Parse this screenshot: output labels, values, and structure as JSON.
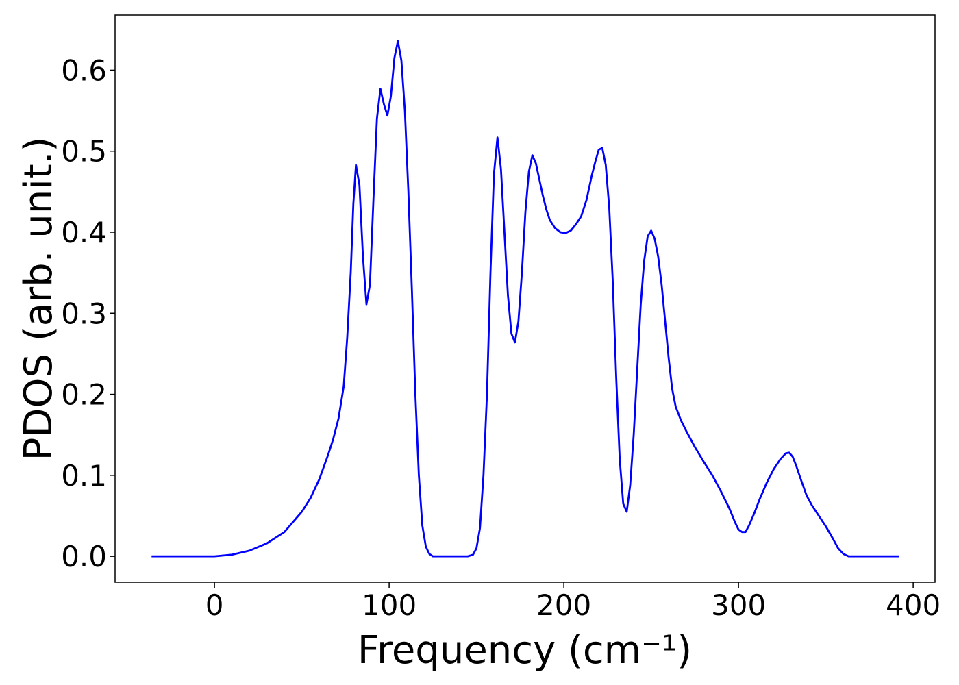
{
  "chart_data": {
    "type": "line",
    "x_label": "Frequency (cm⁻¹)",
    "y_label": "PDOS (arb. unit.)",
    "xlim": [
      -56.9,
      412.5
    ],
    "ylim": [
      -0.032,
      0.668
    ],
    "xticks": [
      0,
      100,
      200,
      300,
      400
    ],
    "yticks": [
      {
        "value": 0,
        "label": "0.0"
      },
      0.1,
      0.2,
      0.3,
      0.4,
      0.5,
      0.6
    ],
    "x": [
      -36,
      0,
      10,
      20,
      30,
      40,
      50,
      55,
      60,
      65,
      68,
      71,
      74,
      76,
      78,
      79.5,
      81,
      83,
      85,
      87,
      89,
      91,
      93,
      95,
      97,
      99,
      101,
      103,
      105,
      107,
      109,
      111,
      113,
      115,
      117,
      119,
      121,
      123,
      125,
      145,
      148,
      150,
      152,
      154,
      156,
      158,
      160,
      162,
      164,
      166,
      168,
      170,
      172,
      174,
      176,
      178,
      180,
      182,
      184,
      186,
      188,
      190,
      192,
      195,
      198,
      201,
      204,
      207,
      210,
      213,
      216,
      218,
      220,
      222,
      224,
      226,
      228,
      230,
      232,
      234,
      236,
      238,
      240,
      242,
      244,
      246,
      248,
      250,
      252,
      254,
      256,
      258,
      260,
      262,
      264,
      267,
      270,
      275,
      280,
      285,
      290,
      295,
      298,
      300,
      302,
      304,
      306,
      309,
      312,
      316,
      320,
      324,
      327,
      329,
      331,
      333,
      336,
      339,
      342,
      346,
      350,
      354,
      357,
      360,
      363,
      392
    ],
    "series": [
      {
        "color": "#0000ff",
        "values": [
          0,
          0,
          0.002,
          0.007,
          0.016,
          0.03,
          0.055,
          0.072,
          0.095,
          0.125,
          0.145,
          0.17,
          0.21,
          0.27,
          0.35,
          0.435,
          0.483,
          0.458,
          0.37,
          0.311,
          0.335,
          0.44,
          0.54,
          0.577,
          0.558,
          0.544,
          0.568,
          0.615,
          0.636,
          0.612,
          0.55,
          0.45,
          0.33,
          0.2,
          0.1,
          0.038,
          0.012,
          0.003,
          0,
          0,
          0.002,
          0.01,
          0.035,
          0.1,
          0.2,
          0.35,
          0.472,
          0.517,
          0.478,
          0.4,
          0.322,
          0.275,
          0.264,
          0.29,
          0.35,
          0.425,
          0.475,
          0.495,
          0.485,
          0.465,
          0.445,
          0.428,
          0.415,
          0.405,
          0.4,
          0.399,
          0.402,
          0.41,
          0.42,
          0.44,
          0.47,
          0.487,
          0.502,
          0.504,
          0.483,
          0.43,
          0.34,
          0.22,
          0.12,
          0.065,
          0.055,
          0.088,
          0.15,
          0.23,
          0.31,
          0.365,
          0.395,
          0.402,
          0.392,
          0.37,
          0.335,
          0.29,
          0.245,
          0.207,
          0.185,
          0.168,
          0.155,
          0.135,
          0.117,
          0.1,
          0.08,
          0.058,
          0.042,
          0.033,
          0.03,
          0.03,
          0.038,
          0.053,
          0.07,
          0.09,
          0.107,
          0.12,
          0.127,
          0.128,
          0.123,
          0.112,
          0.093,
          0.075,
          0.063,
          0.05,
          0.037,
          0.022,
          0.01,
          0.003,
          0,
          0
        ]
      }
    ]
  }
}
